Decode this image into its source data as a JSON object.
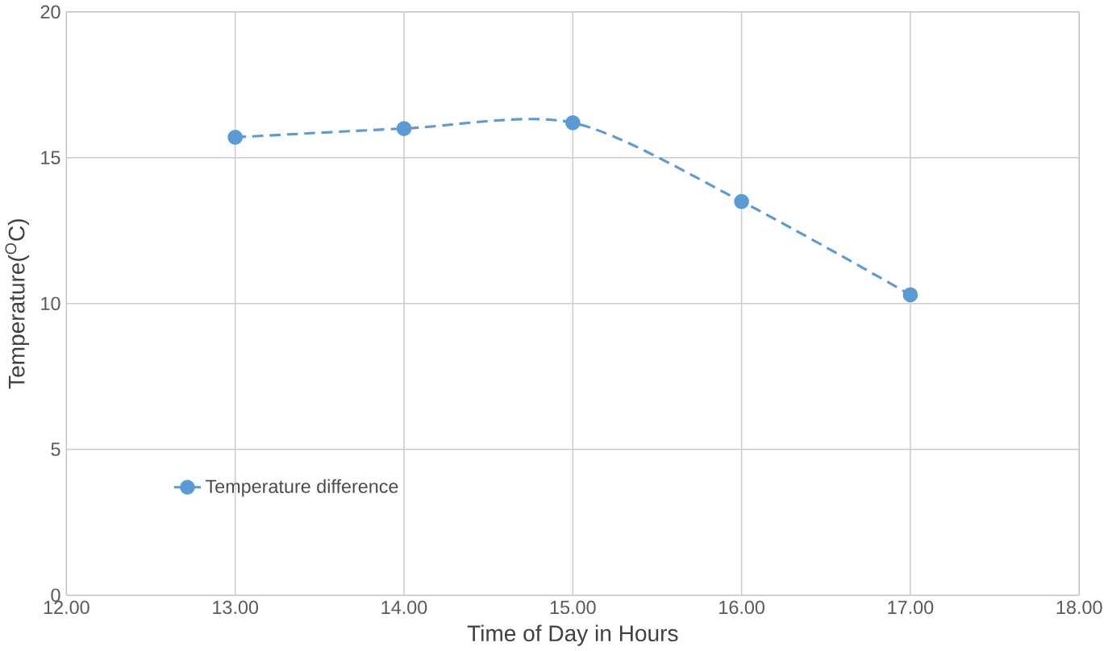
{
  "chart_data": {
    "type": "line",
    "xlabel": "Time of Day in Hours",
    "ylabel": "Temperature($^{O}$C)",
    "x": [
      13,
      14,
      15,
      16,
      17
    ],
    "series": [
      {
        "name": "Temperature difference",
        "color": "#5b9bd5",
        "values": [
          15.7,
          16.0,
          16.2,
          13.5,
          10.3
        ]
      }
    ],
    "xlim": [
      12,
      18
    ],
    "ylim": [
      0,
      20
    ],
    "xticks": [
      {
        "value": 12,
        "label": "12.00"
      },
      {
        "value": 13,
        "label": "13.00"
      },
      {
        "value": 14,
        "label": "14.00"
      },
      {
        "value": 15,
        "label": "15.00"
      },
      {
        "value": 16,
        "label": "16.00"
      },
      {
        "value": 17,
        "label": "17.00"
      },
      {
        "value": 18,
        "label": "18.00"
      }
    ],
    "yticks": [
      0,
      5,
      10,
      15,
      20
    ],
    "grid": true,
    "legend": "bottom left",
    "marker": "circle",
    "line_style": "dashed"
  }
}
